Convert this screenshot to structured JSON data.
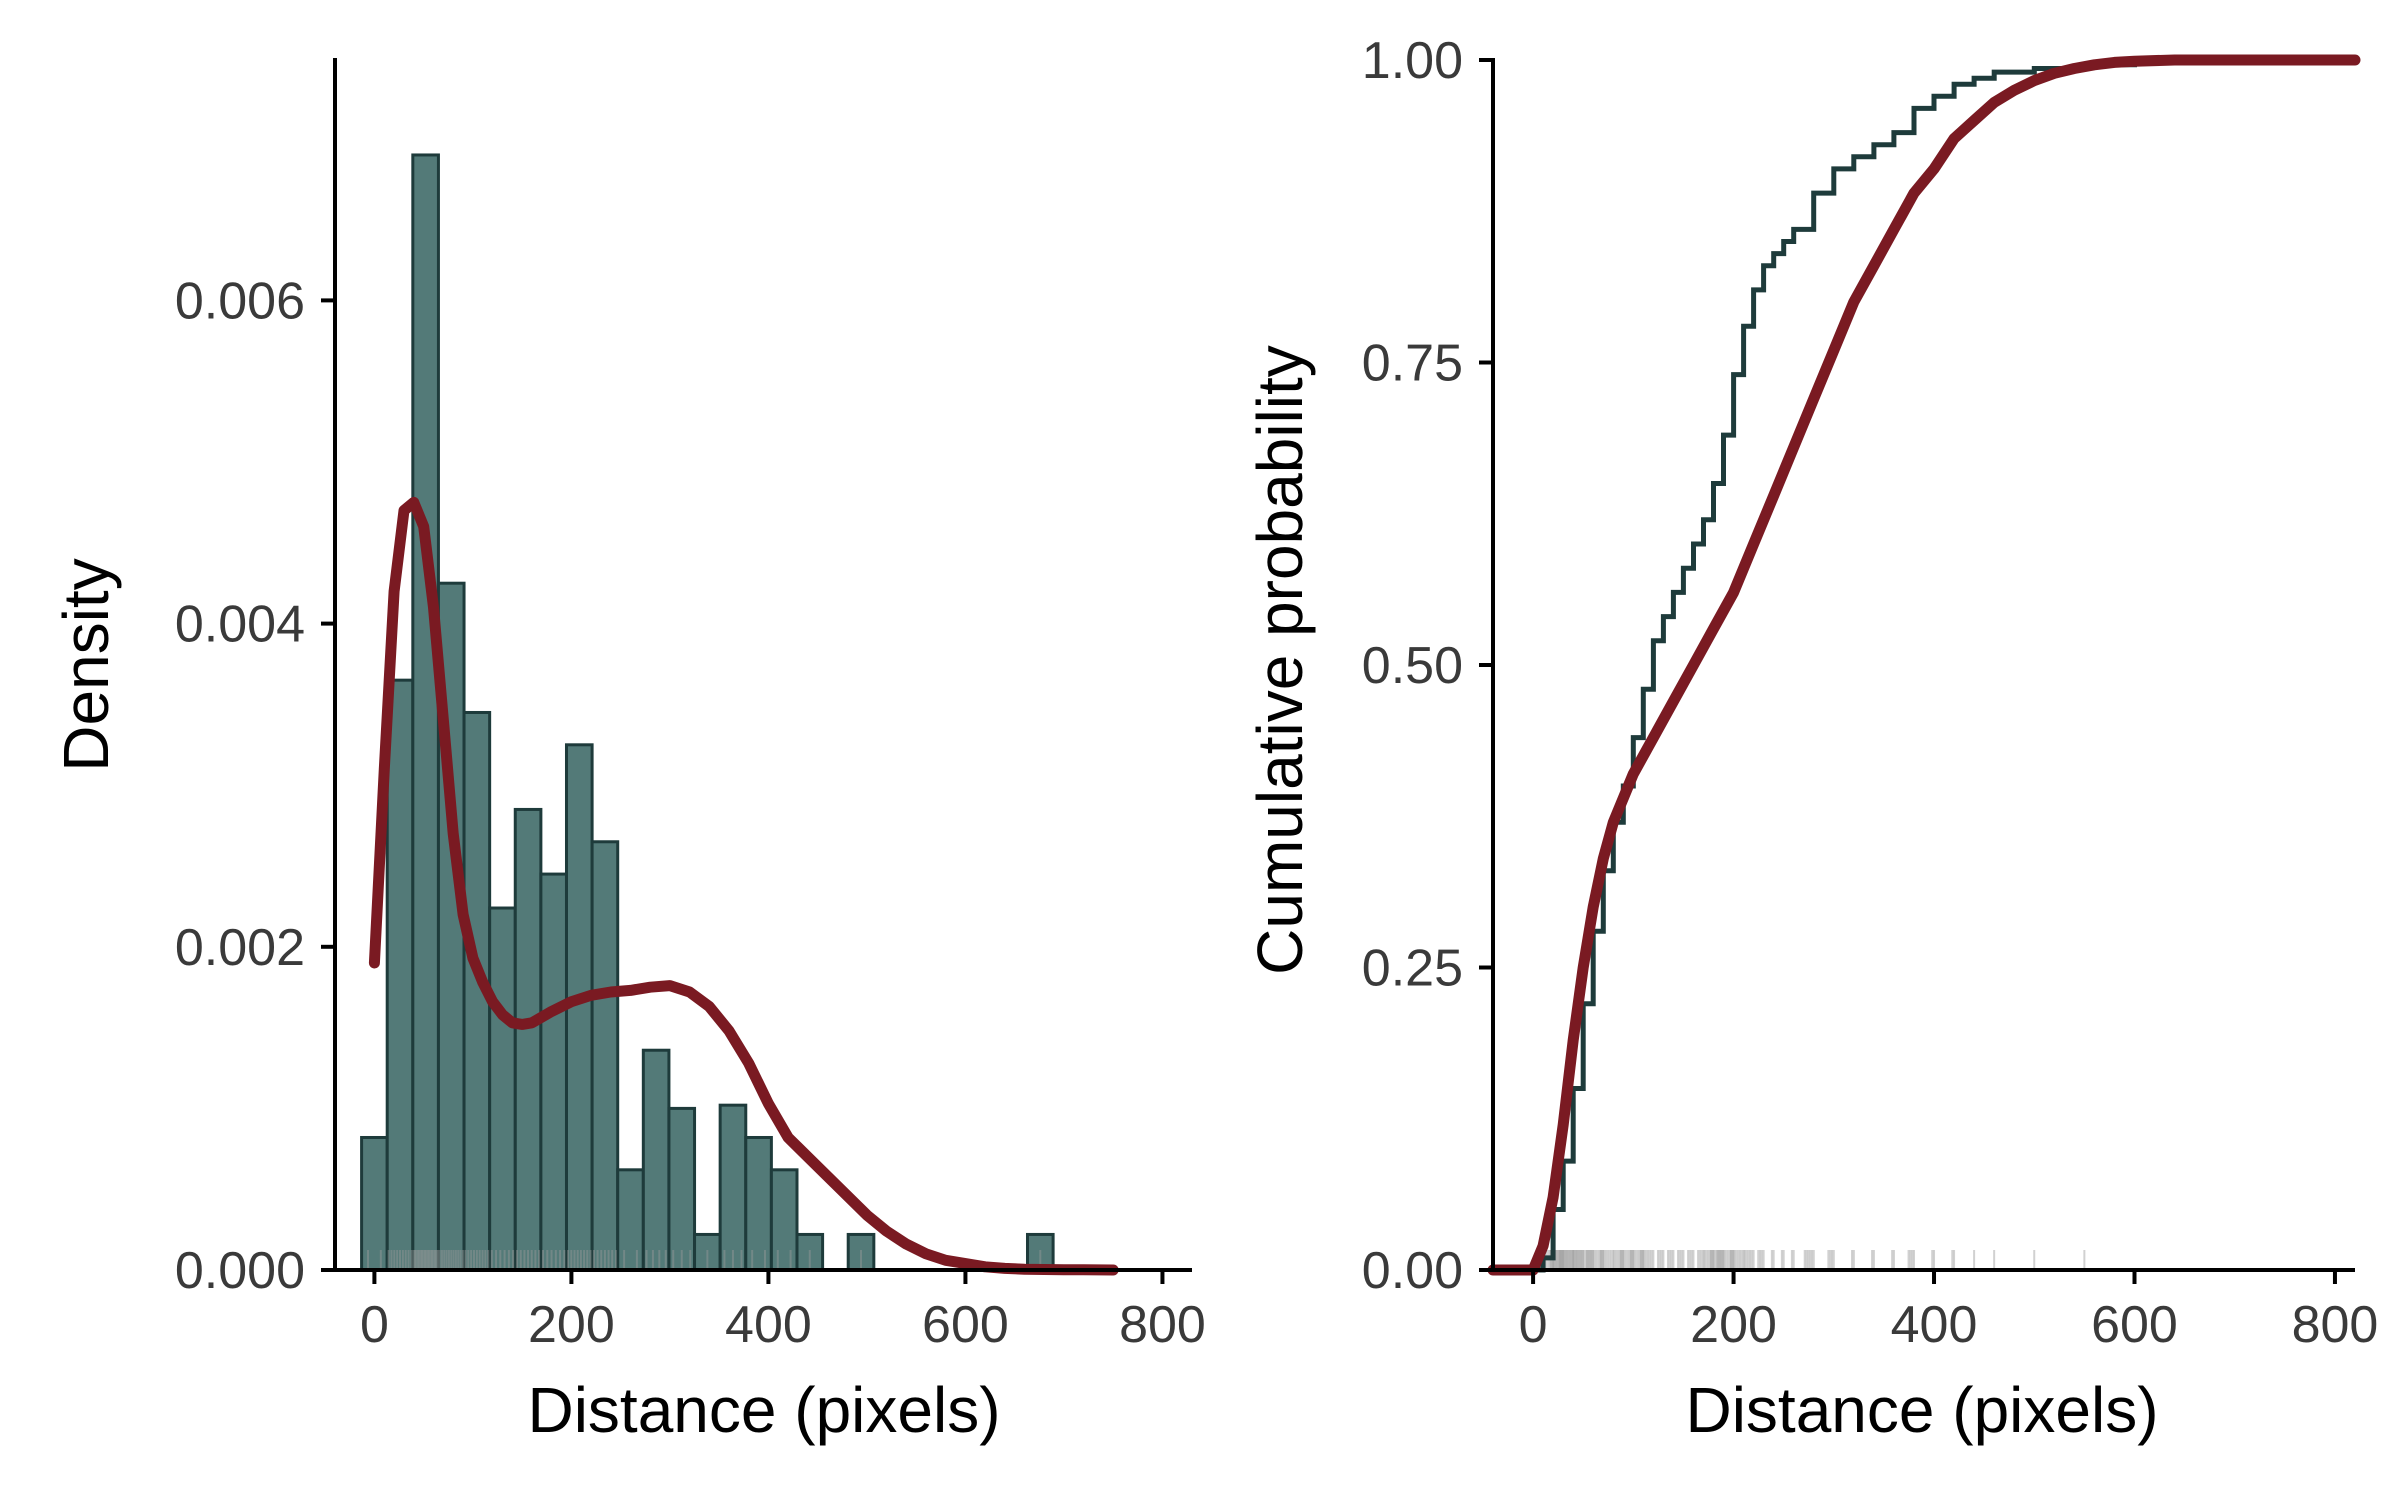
{
  "colors": {
    "bar_fill": "#537A78",
    "bar_edge": "#1E3B3B",
    "density_line": "#7A1A22",
    "ecdf_step": "#1E3B3B",
    "cdf_line": "#7A1A22",
    "axis": "#000000",
    "tick_text": "#3A3A3A",
    "rug": "#9A9A9A"
  },
  "chart_data": [
    {
      "type": "bar",
      "subtype": "histogram-with-density",
      "xlabel": "Distance (pixels)",
      "ylabel": "Density",
      "xlim": [
        -40,
        830
      ],
      "ylim": [
        0,
        0.0075
      ],
      "xticks": [
        0,
        200,
        400,
        600,
        800
      ],
      "xtick_labels": [
        "0",
        "200",
        "400",
        "600",
        "800"
      ],
      "yticks": [
        0,
        0.002,
        0.004,
        0.006
      ],
      "ytick_labels": [
        "0.000",
        "0.002",
        "0.004",
        "0.006"
      ],
      "bin_width": 26,
      "bin_starts": [
        -13,
        13,
        39,
        65,
        91,
        117,
        143,
        169,
        195,
        221,
        247,
        273,
        299,
        325,
        351,
        377,
        403,
        429,
        455,
        481,
        507,
        533,
        559,
        585,
        611,
        637,
        663
      ],
      "values": [
        0.00082,
        0.00365,
        0.0069,
        0.00425,
        0.00345,
        0.00224,
        0.00285,
        0.00245,
        0.00325,
        0.00265,
        0.00062,
        0.00136,
        0.001,
        0.00022,
        0.00102,
        0.00082,
        0.00062,
        0.00022,
        0,
        0.00022,
        0,
        0,
        0,
        0,
        0,
        0,
        0.00022
      ],
      "density_curve": {
        "x": [
          0,
          10,
          20,
          30,
          40,
          50,
          60,
          70,
          80,
          90,
          100,
          110,
          120,
          130,
          140,
          150,
          160,
          180,
          200,
          220,
          240,
          260,
          280,
          300,
          320,
          340,
          360,
          380,
          400,
          420,
          440,
          460,
          480,
          500,
          520,
          540,
          560,
          580,
          600,
          620,
          640,
          660,
          680,
          700,
          720,
          750
        ],
        "y": [
          0.0019,
          0.0031,
          0.0042,
          0.0047,
          0.00475,
          0.0046,
          0.0041,
          0.0034,
          0.0027,
          0.0022,
          0.00193,
          0.00178,
          0.00166,
          0.00158,
          0.00153,
          0.00152,
          0.00153,
          0.0016,
          0.00166,
          0.0017,
          0.00172,
          0.00173,
          0.00175,
          0.00176,
          0.00172,
          0.00163,
          0.00148,
          0.00128,
          0.00103,
          0.00082,
          0.0007,
          0.00058,
          0.00046,
          0.00034,
          0.00024,
          0.00016,
          0.0001,
          6e-05,
          4e-05,
          2e-05,
          1e-05,
          5e-06,
          3e-06,
          2e-06,
          1e-06,
          0
        ]
      },
      "rug": true
    },
    {
      "type": "line",
      "subtype": "ecdf",
      "xlabel": "Distance (pixels)",
      "ylabel": "Cumulative probability",
      "xlim": [
        -40,
        820
      ],
      "ylim": [
        0,
        1
      ],
      "xticks": [
        0,
        200,
        400,
        600,
        800
      ],
      "xtick_labels": [
        "0",
        "200",
        "400",
        "600",
        "800"
      ],
      "yticks": [
        0,
        0.25,
        0.5,
        0.75,
        1
      ],
      "ytick_labels": [
        "0.00",
        "0.25",
        "0.50",
        "0.75",
        "1.00"
      ],
      "ecdf": {
        "x": [
          10,
          20,
          30,
          40,
          50,
          60,
          70,
          80,
          90,
          100,
          110,
          120,
          130,
          140,
          150,
          160,
          170,
          180,
          190,
          200,
          210,
          220,
          230,
          240,
          250,
          260,
          280,
          300,
          320,
          340,
          360,
          380,
          400,
          420,
          440,
          460,
          500,
          550,
          600,
          650,
          680,
          820
        ],
        "y": [
          0.01,
          0.05,
          0.09,
          0.15,
          0.22,
          0.28,
          0.33,
          0.37,
          0.4,
          0.44,
          0.48,
          0.52,
          0.54,
          0.56,
          0.58,
          0.6,
          0.62,
          0.65,
          0.69,
          0.74,
          0.78,
          0.81,
          0.83,
          0.84,
          0.85,
          0.86,
          0.89,
          0.91,
          0.92,
          0.93,
          0.94,
          0.96,
          0.97,
          0.98,
          0.985,
          0.99,
          0.993,
          0.996,
          0.998,
          0.999,
          1,
          1
        ]
      },
      "theoretical_cdf": {
        "x": [
          0,
          10,
          20,
          30,
          40,
          50,
          60,
          70,
          80,
          90,
          100,
          120,
          140,
          160,
          180,
          200,
          220,
          240,
          260,
          280,
          300,
          320,
          340,
          360,
          380,
          400,
          420,
          440,
          460,
          480,
          500,
          520,
          540,
          560,
          580,
          600,
          640,
          700,
          820
        ],
        "y": [
          0,
          0.02,
          0.06,
          0.12,
          0.19,
          0.25,
          0.3,
          0.34,
          0.37,
          0.39,
          0.41,
          0.44,
          0.47,
          0.5,
          0.53,
          0.56,
          0.6,
          0.64,
          0.68,
          0.72,
          0.76,
          0.8,
          0.83,
          0.86,
          0.89,
          0.91,
          0.935,
          0.95,
          0.965,
          0.975,
          0.983,
          0.989,
          0.993,
          0.996,
          0.998,
          0.999,
          1,
          1,
          1
        ]
      },
      "rug": true
    }
  ]
}
